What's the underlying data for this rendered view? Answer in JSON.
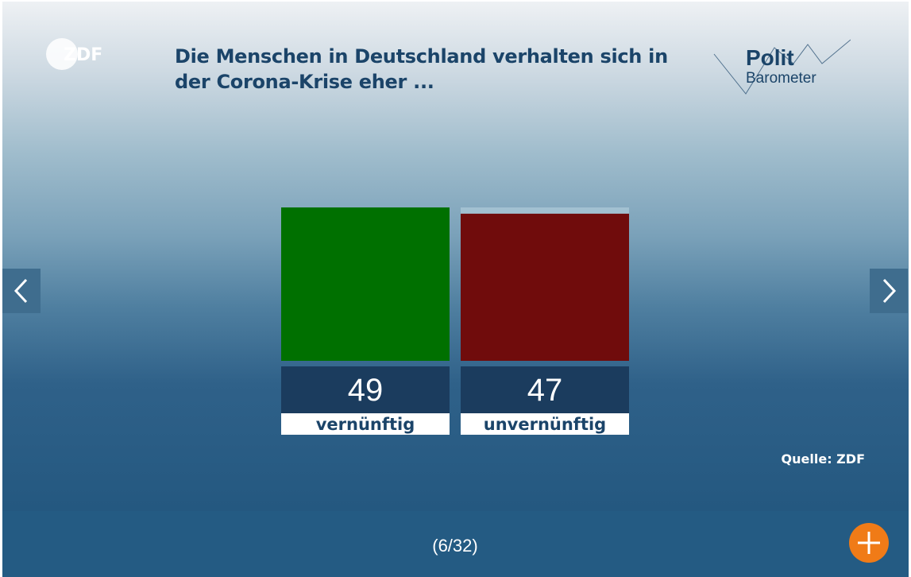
{
  "brand": {
    "broadcaster_logo": "ZDF",
    "show_logo_line1": "Polit",
    "show_logo_line2": "Barometer"
  },
  "navigation": {
    "prev_icon": "chevron-left-icon",
    "next_icon": "chevron-right-icon",
    "pager": "(6/32)",
    "more_icon": "plus-icon"
  },
  "source": "Quelle: ZDF",
  "colors": {
    "accent": "#f07b17",
    "title": "#1b4469",
    "value_box": "#1b3c5e"
  },
  "chart_data": {
    "type": "bar",
    "title": "Die Menschen in Deutschland verhalten sich in der Corona-Krise eher ...",
    "categories": [
      "vernünftig",
      "unvernünftig"
    ],
    "values": [
      49,
      47
    ],
    "value_labels": [
      "49",
      "47"
    ],
    "colors": [
      "#007000",
      "#700c0c"
    ],
    "ylim": [
      0,
      49
    ],
    "unit": "%",
    "grid": false,
    "legend": "none"
  }
}
